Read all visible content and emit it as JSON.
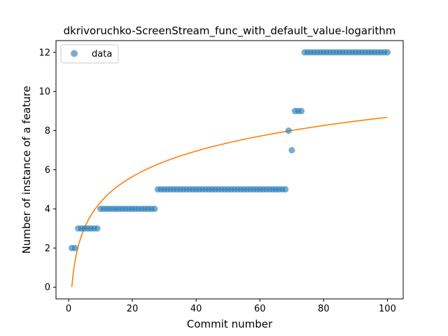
{
  "chart_data": {
    "type": "scatter",
    "title": "dkrivoruchko-ScreenStream_func_with_default_value-logarithm",
    "xlabel": "Commit number",
    "ylabel": "Number of instance of a feature",
    "xlim": [
      -3.95,
      104.95
    ],
    "ylim": [
      -0.6,
      12.6
    ],
    "xticks": [
      0,
      20,
      40,
      60,
      80,
      100
    ],
    "yticks": [
      0,
      2,
      4,
      6,
      8,
      10,
      12
    ],
    "legend": {
      "placement": "top-left",
      "entries": [
        "data"
      ]
    },
    "grid": false,
    "colors": {
      "data": "#1f77b4",
      "fit": "#ff7f0e"
    },
    "series": [
      {
        "name": "data",
        "kind": "scatter",
        "points": [
          [
            1,
            2
          ],
          [
            2,
            2
          ],
          [
            3,
            3
          ],
          [
            4,
            3
          ],
          [
            5,
            3
          ],
          [
            6,
            3
          ],
          [
            7,
            3
          ],
          [
            8,
            3
          ],
          [
            9,
            3
          ],
          [
            10,
            4
          ],
          [
            11,
            4
          ],
          [
            12,
            4
          ],
          [
            13,
            4
          ],
          [
            14,
            4
          ],
          [
            15,
            4
          ],
          [
            16,
            4
          ],
          [
            17,
            4
          ],
          [
            18,
            4
          ],
          [
            19,
            4
          ],
          [
            20,
            4
          ],
          [
            21,
            4
          ],
          [
            22,
            4
          ],
          [
            23,
            4
          ],
          [
            24,
            4
          ],
          [
            25,
            4
          ],
          [
            26,
            4
          ],
          [
            27,
            4
          ],
          [
            28,
            5
          ],
          [
            29,
            5
          ],
          [
            30,
            5
          ],
          [
            31,
            5
          ],
          [
            32,
            5
          ],
          [
            33,
            5
          ],
          [
            34,
            5
          ],
          [
            35,
            5
          ],
          [
            36,
            5
          ],
          [
            37,
            5
          ],
          [
            38,
            5
          ],
          [
            39,
            5
          ],
          [
            40,
            5
          ],
          [
            41,
            5
          ],
          [
            42,
            5
          ],
          [
            43,
            5
          ],
          [
            44,
            5
          ],
          [
            45,
            5
          ],
          [
            46,
            5
          ],
          [
            47,
            5
          ],
          [
            48,
            5
          ],
          [
            49,
            5
          ],
          [
            50,
            5
          ],
          [
            51,
            5
          ],
          [
            52,
            5
          ],
          [
            53,
            5
          ],
          [
            54,
            5
          ],
          [
            55,
            5
          ],
          [
            56,
            5
          ],
          [
            57,
            5
          ],
          [
            58,
            5
          ],
          [
            59,
            5
          ],
          [
            60,
            5
          ],
          [
            61,
            5
          ],
          [
            62,
            5
          ],
          [
            63,
            5
          ],
          [
            64,
            5
          ],
          [
            65,
            5
          ],
          [
            66,
            5
          ],
          [
            67,
            5
          ],
          [
            68,
            5
          ],
          [
            69,
            8
          ],
          [
            70,
            7
          ],
          [
            71,
            9
          ],
          [
            72,
            9
          ],
          [
            73,
            9
          ],
          [
            74,
            12
          ],
          [
            75,
            12
          ],
          [
            76,
            12
          ],
          [
            77,
            12
          ],
          [
            78,
            12
          ],
          [
            79,
            12
          ],
          [
            80,
            12
          ],
          [
            81,
            12
          ],
          [
            82,
            12
          ],
          [
            83,
            12
          ],
          [
            84,
            12
          ],
          [
            85,
            12
          ],
          [
            86,
            12
          ],
          [
            87,
            12
          ],
          [
            88,
            12
          ],
          [
            89,
            12
          ],
          [
            90,
            12
          ],
          [
            91,
            12
          ],
          [
            92,
            12
          ],
          [
            93,
            12
          ],
          [
            94,
            12
          ],
          [
            95,
            12
          ],
          [
            96,
            12
          ],
          [
            97,
            12
          ],
          [
            98,
            12
          ],
          [
            99,
            12
          ],
          [
            100,
            12
          ]
        ]
      },
      {
        "kind": "line",
        "model": "a*ln(x)+b",
        "a": 1.885,
        "b": 0.0,
        "x_range": [
          1,
          100
        ]
      }
    ]
  }
}
